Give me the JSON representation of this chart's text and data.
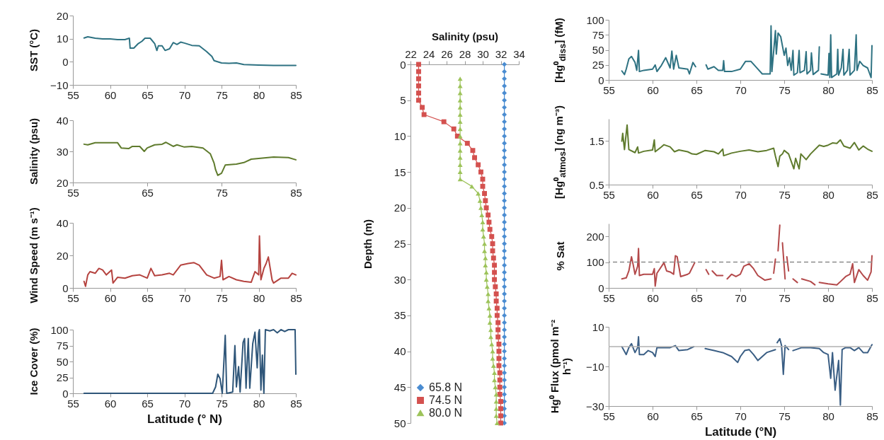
{
  "chart_data": [
    {
      "type": "line",
      "ylabel": "SST (°C)",
      "xlim": [
        55,
        85
      ],
      "xticks": [
        55,
        60,
        65,
        70,
        75,
        80,
        85
      ],
      "ylim": [
        -10,
        20
      ],
      "yticks": [
        -10,
        0,
        10,
        20
      ],
      "color": "#2e7282",
      "x": [
        56.5,
        57,
        58,
        59,
        60,
        61,
        62,
        62.6,
        62.7,
        63.2,
        63.8,
        64.3,
        64.7,
        65.4,
        66,
        66.3,
        66.5,
        67,
        67.4,
        68,
        68.5,
        69,
        69.5,
        70,
        71,
        72,
        73,
        73.7,
        74,
        75,
        76,
        77,
        78,
        80,
        82,
        85
      ],
      "values": [
        10.3,
        10.8,
        10.2,
        9.9,
        9.9,
        9.6,
        9.6,
        10.2,
        5.9,
        5.9,
        7.9,
        8.9,
        10.2,
        10.2,
        7.9,
        4.9,
        6.9,
        6.9,
        4.9,
        5.6,
        8.3,
        7.5,
        8.5,
        8.1,
        7.1,
        6.9,
        4.4,
        2.3,
        0.5,
        -0.5,
        -0.7,
        -0.5,
        -1.2,
        -1.4,
        -1.6,
        -1.6
      ]
    },
    {
      "type": "line",
      "ylabel": "Salinity (psu)",
      "xlim": [
        55,
        85
      ],
      "xticks": [
        55,
        65,
        75,
        85
      ],
      "ylim": [
        20,
        40
      ],
      "yticks": [
        20,
        30,
        40
      ],
      "color": "#5f7b2d",
      "x": [
        56.5,
        57,
        58,
        60,
        61,
        61.5,
        62.5,
        63,
        64,
        64.6,
        65,
        66,
        67,
        67.5,
        68.5,
        69,
        70,
        71,
        72.5,
        73.5,
        74,
        74.2,
        74.5,
        75,
        75.5,
        77,
        78,
        79,
        80,
        82,
        84,
        85
      ],
      "values": [
        32.3,
        32.1,
        32.8,
        32.8,
        32.8,
        31.1,
        30.9,
        31.6,
        31.6,
        30.0,
        31.1,
        32.1,
        32.3,
        32.9,
        31.6,
        32.1,
        31.4,
        31.6,
        31.1,
        29.2,
        26.2,
        24.1,
        22.3,
        23.0,
        25.6,
        25.9,
        26.4,
        27.5,
        27.7,
        28.2,
        28.0,
        27.3
      ]
    },
    {
      "type": "line",
      "ylabel": "Wind Speed (m s⁻¹)",
      "xlim": [
        55,
        85
      ],
      "xticks": [
        55,
        60,
        65,
        70,
        75,
        80,
        85
      ],
      "ylim": [
        0,
        40
      ],
      "yticks": [
        0,
        20,
        40
      ],
      "color": "#b5433f",
      "x": [
        56.5,
        56.7,
        57,
        57.3,
        58,
        58.5,
        59,
        59.5,
        60.2,
        60.4,
        61,
        62,
        63,
        64,
        65,
        65.5,
        66,
        67,
        68,
        68.5,
        69.5,
        70.5,
        71.3,
        72,
        73,
        74,
        74.8,
        75,
        75.2,
        76,
        77,
        78,
        79,
        79.5,
        80,
        80.1,
        80.3,
        80.7,
        81,
        81.3,
        81.8,
        82,
        83,
        84,
        84.5,
        85
      ],
      "values": [
        4,
        1,
        8,
        10,
        9,
        12,
        11,
        8,
        11,
        3,
        6.5,
        6,
        7.5,
        8,
        6,
        12,
        7.5,
        8,
        9,
        8,
        14,
        15,
        15.5,
        14,
        8,
        6,
        7,
        17,
        5,
        7,
        5,
        4,
        3.5,
        10,
        8,
        32,
        5,
        12,
        15,
        19,
        5,
        3,
        6,
        6,
        9,
        8
      ]
    },
    {
      "type": "line",
      "ylabel": "Ice Cover (%)",
      "xlabel": "Latitude (° N)",
      "xlim": [
        55,
        85
      ],
      "xticks": [
        55,
        60,
        65,
        70,
        75,
        80,
        85
      ],
      "ylim": [
        0,
        100
      ],
      "yticks": [
        0,
        25,
        50,
        75,
        100
      ],
      "color": "#2f5679",
      "x": [
        56.5,
        73.8,
        74.2,
        74.5,
        74.8,
        75.1,
        75.5,
        75.7,
        76.5,
        76.8,
        77,
        77.3,
        77.5,
        77.9,
        78.1,
        78.3,
        78.6,
        78.8,
        79.2,
        79.5,
        79.8,
        80,
        80.1,
        80.3,
        80.5,
        80.7,
        80.9,
        81.5,
        82,
        82.5,
        83,
        83.5,
        84,
        84.5,
        84.9,
        85
      ],
      "values": [
        0,
        0,
        10,
        30,
        23,
        0,
        91,
        0,
        2,
        75,
        10,
        42,
        2,
        80,
        86,
        8,
        86,
        8,
        78,
        96,
        40,
        95,
        100,
        5,
        60,
        0,
        100,
        98,
        100,
        95,
        100,
        97,
        100,
        100,
        100,
        30
      ]
    },
    {
      "type": "line",
      "xlabel": "Salinity (psu)",
      "ylabel": "Depth (m)",
      "xlim": [
        22,
        34
      ],
      "xticks": [
        22,
        24,
        26,
        28,
        30,
        32,
        34
      ],
      "ylim": [
        50,
        0
      ],
      "yticks": [
        0,
        5,
        10,
        15,
        20,
        25,
        30,
        35,
        40,
        45,
        50
      ],
      "legend": "bottom left",
      "series": [
        {
          "name": "65.8 N",
          "color": "#4a8cd1",
          "marker": "diamond",
          "x": [
            32.4,
            32.4,
            32.4,
            32.4,
            32.4,
            32.4,
            32.4,
            32.4,
            32.4,
            32.4,
            32.4,
            32.4,
            32.4,
            32.4,
            32.4,
            32.4,
            32.4,
            32.4,
            32.4,
            32.4,
            32.4,
            32.4,
            32.4,
            32.4,
            32.4,
            32.4,
            32.4,
            32.4,
            32.4,
            32.4,
            32.4,
            32.4,
            32.4,
            32.4,
            32.4,
            32.4,
            32.4,
            32.4,
            32.4,
            32.4,
            32.4,
            32.4,
            32.4,
            32.4,
            32.4,
            32.4,
            32.4,
            32.4,
            32.4,
            32.4,
            32.4
          ],
          "values": [
            0,
            1,
            2,
            3,
            4,
            5,
            6,
            7,
            8,
            9,
            10,
            11,
            12,
            13,
            14,
            15,
            16,
            17,
            18,
            19,
            20,
            21,
            22,
            23,
            24,
            25,
            26,
            27,
            28,
            29,
            30,
            31,
            32,
            33,
            34,
            35,
            36,
            37,
            38,
            39,
            40,
            41,
            42,
            43,
            44,
            45,
            46,
            47,
            48,
            49,
            50
          ]
        },
        {
          "name": "74.5 N",
          "color": "#d4514f",
          "marker": "square",
          "x": [
            22.9,
            22.9,
            22.9,
            22.9,
            22.9,
            22.9,
            23.3,
            23.5,
            25.7,
            26.8,
            27.2,
            28.3,
            28.9,
            29.1,
            29.5,
            29.8,
            30.0,
            30.0,
            30.2,
            30.3,
            30.4,
            30.6,
            30.7,
            30.8,
            31.0,
            31.1,
            31.1,
            31.2,
            31.3,
            31.3,
            31.3,
            31.4,
            31.5,
            31.5,
            31.6,
            31.6,
            31.7,
            31.7,
            31.7,
            31.8,
            31.8,
            31.8,
            31.8,
            31.9,
            31.9,
            31.9,
            31.9,
            32.0,
            32.0,
            32.0,
            32.0
          ],
          "values": [
            0,
            1,
            2,
            3,
            4,
            5,
            6,
            7,
            8,
            9,
            10,
            11,
            12,
            13,
            14,
            15,
            16,
            17,
            18,
            19,
            20,
            21,
            22,
            23,
            24,
            25,
            26,
            27,
            28,
            29,
            30,
            31,
            32,
            33,
            34,
            35,
            36,
            37,
            38,
            39,
            40,
            41,
            42,
            43,
            44,
            45,
            46,
            47,
            48,
            49,
            50
          ]
        },
        {
          "name": "80.0 N",
          "color": "#9dc35a",
          "marker": "triangle",
          "x": [
            27.5,
            27.5,
            27.5,
            27.5,
            27.5,
            27.5,
            27.5,
            27.5,
            27.5,
            27.5,
            27.5,
            27.5,
            27.5,
            27.5,
            27.5,
            28.8,
            29.5,
            29.7,
            29.8,
            29.9,
            30.0,
            30.0,
            30.1,
            30.2,
            30.2,
            30.3,
            30.3,
            30.4,
            30.4,
            30.5,
            30.6,
            30.6,
            30.7,
            30.8,
            30.8,
            30.9,
            30.9,
            31.0,
            31.1,
            31.1,
            31.2,
            31.3,
            31.3,
            31.4,
            31.5,
            31.5,
            31.5,
            31.5,
            31.6
          ],
          "values": [
            2,
            3,
            4,
            5,
            6,
            7,
            8,
            9,
            10,
            11,
            12,
            13,
            14,
            15,
            16,
            17,
            18,
            19,
            20,
            21,
            22,
            23,
            24,
            25,
            26,
            27,
            28,
            29,
            30,
            31,
            32,
            33,
            34,
            35,
            36,
            37,
            38,
            39,
            40,
            41,
            42,
            43,
            44,
            45,
            46,
            47,
            48,
            49,
            50
          ]
        }
      ]
    },
    {
      "type": "line",
      "ylabel": "[Hg⁰$_{diss}$] (fM)",
      "xlim": [
        55,
        85
      ],
      "xticks": [
        55,
        60,
        65,
        70,
        75,
        80,
        85
      ],
      "ylim": [
        0,
        100
      ],
      "yticks": [
        0,
        25,
        50,
        75,
        100
      ],
      "color": "#2e7282",
      "x": [
        56.5,
        56.8,
        57,
        57.3,
        57.6,
        58,
        58.2,
        58.4,
        58.5,
        59,
        60,
        60.3,
        60.5,
        61,
        61.5,
        62,
        62.2,
        62.4,
        62.7,
        63,
        64,
        64.2,
        64.6,
        64.9,
        65.5,
        66.1,
        66.3,
        67,
        67.5,
        68,
        68.1,
        68.2,
        69,
        70,
        70.6,
        71.2,
        72,
        72.5,
        73.4,
        73.5,
        73.6,
        74,
        74.1,
        74.3,
        74.6,
        75,
        75.2,
        75.4,
        75.6,
        75.8,
        76,
        76.1,
        76.5,
        76.7,
        76.8,
        77.3,
        77.5,
        77.6,
        78,
        78.1,
        78.3,
        78.9,
        79,
        79.1,
        79.2,
        80,
        80.1,
        80.2,
        80.3,
        80.4,
        81,
        81.1,
        81.2,
        81.5,
        81.7,
        81.8,
        82.2,
        82.4,
        82.5,
        83,
        83.2,
        83.3,
        83.6,
        84,
        84.5,
        84.9,
        85
      ],
      "values": [
        15,
        9,
        18,
        35,
        39,
        29,
        16,
        49,
        14,
        16,
        18,
        25,
        14,
        24,
        37,
        20,
        48,
        18,
        41,
        20,
        18,
        10,
        29,
        22,
        null,
        25,
        18,
        22,
        16,
        16,
        32,
        14,
        14,
        18,
        31,
        31,
        18,
        10,
        10,
        90,
        14,
        82,
        43,
        78,
        72,
        41,
        53,
        24,
        37,
        16,
        49,
        8,
        12,
        49,
        12,
        16,
        47,
        10,
        16,
        45,
        9,
        16,
        55,
        null,
        10,
        8,
        44,
        4,
        75,
        4,
        10,
        51,
        8,
        20,
        51,
        8,
        16,
        51,
        8,
        16,
        75,
        16,
        31,
        24,
        20,
        4,
        57
      ]
    },
    {
      "type": "line",
      "ylabel": "[Hg⁰$_{atmos}$] (ng m⁻³)",
      "xlim": [
        55,
        85
      ],
      "xticks": [
        55,
        60,
        65,
        70,
        75,
        80,
        85
      ],
      "ylim": [
        0.5,
        2
      ],
      "yticks": [
        0.5,
        1.5
      ],
      "color": "#5f7b2d",
      "x": [
        56.5,
        56.6,
        56.8,
        57.1,
        57.3,
        58,
        58.3,
        58.4,
        59,
        60,
        60.2,
        60.3,
        61,
        61.3,
        62,
        62.5,
        63,
        64,
        64.5,
        65,
        66,
        67,
        67.5,
        68,
        68.1,
        69,
        70,
        71,
        72,
        73,
        73.8,
        74,
        74.3,
        74.5,
        74.8,
        75,
        75.5,
        76.1,
        76.3,
        76.7,
        76.9,
        77.5,
        78,
        79,
        79.5,
        80,
        80.5,
        81,
        81.4,
        81.8,
        82.5,
        83,
        83.5,
        84,
        84.5,
        85
      ],
      "values": [
        1.49,
        1.67,
        1.3,
        1.86,
        1.3,
        1.23,
        1.36,
        1.22,
        1.26,
        1.29,
        1.52,
        1.25,
        1.36,
        1.41,
        1.36,
        1.25,
        1.29,
        1.25,
        1.2,
        1.19,
        1.28,
        1.25,
        1.2,
        1.31,
        1.16,
        1.22,
        1.26,
        1.29,
        1.25,
        1.28,
        1.33,
        1.15,
        0.91,
        1.15,
        1.2,
        1.28,
        1.2,
        0.86,
        1.1,
        0.86,
        1.2,
        1.07,
        1.2,
        1.4,
        1.37,
        1.4,
        1.45,
        1.44,
        1.52,
        1.38,
        1.33,
        1.46,
        1.29,
        1.38,
        1.31,
        1.26
      ]
    },
    {
      "type": "line",
      "ylabel": "% Sat",
      "xlim": [
        55,
        85
      ],
      "xticks": [
        55,
        60,
        65,
        70,
        75,
        80,
        85
      ],
      "ylim": [
        0,
        250
      ],
      "yticks": [
        0,
        100,
        200
      ],
      "color": "#b3494a",
      "ref_lines": [
        {
          "axis": "y",
          "value": 100,
          "color": "#8c8c8c",
          "line_style": "dashed"
        }
      ],
      "x": [
        56.5,
        57,
        57.3,
        57.6,
        57.8,
        58,
        58.3,
        58.4,
        58.5,
        59,
        60,
        60.2,
        60.3,
        60.5,
        61.3,
        61.6,
        62,
        62.4,
        62.6,
        62.8,
        63.2,
        64,
        64.2,
        64.8,
        65.5,
        66.1,
        66.4,
        66.6,
        66.8,
        67.3,
        68,
        68.3,
        68.5,
        69,
        69.5,
        70,
        70.4,
        71,
        71.5,
        72,
        72.8,
        73.5,
        73.65,
        73.8,
        74,
        74.15,
        74.3,
        74.5,
        74.65,
        74.8,
        75.1,
        75.2,
        75.3,
        75.5,
        75.8,
        76,
        76.5,
        76.8,
        77,
        78,
        78.5,
        78.8,
        79,
        80,
        81,
        81.3,
        82,
        82.5,
        82.8,
        83,
        83.5,
        84,
        84.5,
        84.9,
        85
      ],
      "values": [
        35,
        39,
        66,
        121,
        89,
        53,
        84,
        153,
        48,
        53,
        53,
        75,
        7,
        57,
        98,
        66,
        62,
        53,
        125,
        121,
        44,
        53,
        57,
        98,
        null,
        71,
        53,
        null,
        66,
        48,
        48,
        null,
        35,
        53,
        44,
        53,
        84,
        94,
        75,
        48,
        30,
        35,
        null,
        57,
        112,
        null,
        144,
        244,
        null,
        175,
        35,
        null,
        121,
        66,
        null,
        35,
        21,
        null,
        35,
        25,
        12,
        null,
        21,
        16,
        12,
        21,
        44,
        53,
        94,
        21,
        71,
        48,
        30,
        62,
        125
      ]
    },
    {
      "type": "line",
      "ylabel": "Hg⁰ Flux (pmol m⁻² h⁻¹)",
      "xlabel": "Latitude (°N)",
      "xlim": [
        55,
        85
      ],
      "xticks": [
        55,
        60,
        65,
        70,
        75,
        80,
        85
      ],
      "ylim": [
        -30,
        10
      ],
      "yticks": [
        -30,
        -10,
        10
      ],
      "color": "#3a5e84",
      "ref_lines": [
        {
          "axis": "y",
          "value": 0,
          "color": "#b0b0b0"
        }
      ],
      "x": [
        56.5,
        57,
        57.3,
        57.6,
        58,
        58.3,
        58.4,
        58.5,
        59,
        59.5,
        60,
        60.3,
        60.5,
        61,
        62,
        62.6,
        63,
        64,
        64.7,
        65.3,
        66,
        67,
        68,
        69,
        69.7,
        70,
        70.5,
        71,
        71.5,
        72,
        73,
        74,
        74.1,
        74.2,
        74.5,
        74.7,
        74.9,
        75.1,
        75.5,
        75.7,
        76,
        77,
        78,
        79,
        79.5,
        80,
        80.3,
        80.5,
        80.8,
        81.2,
        81.4,
        81.6,
        82,
        82.5,
        83,
        83.5,
        84,
        84.5,
        85
      ],
      "values": [
        0,
        -4,
        -0.5,
        1.5,
        -3,
        -0.5,
        5,
        -4,
        -4,
        -2,
        -3,
        -5,
        -0.5,
        -0.5,
        -0.5,
        0.5,
        -2,
        -1.5,
        0,
        null,
        -1,
        -2,
        -3,
        -5,
        -8,
        -5,
        -2,
        -1.5,
        -4,
        -7,
        -3,
        -1.5,
        null,
        2,
        4,
        0.5,
        -14,
        0.5,
        -1.5,
        null,
        -2,
        -0.5,
        -0.5,
        -1,
        -3,
        -4,
        -16,
        -3,
        -22,
        -7,
        -29.5,
        -1.5,
        -0.5,
        -0.5,
        -2,
        -0.5,
        -3,
        -3,
        1
      ]
    }
  ]
}
